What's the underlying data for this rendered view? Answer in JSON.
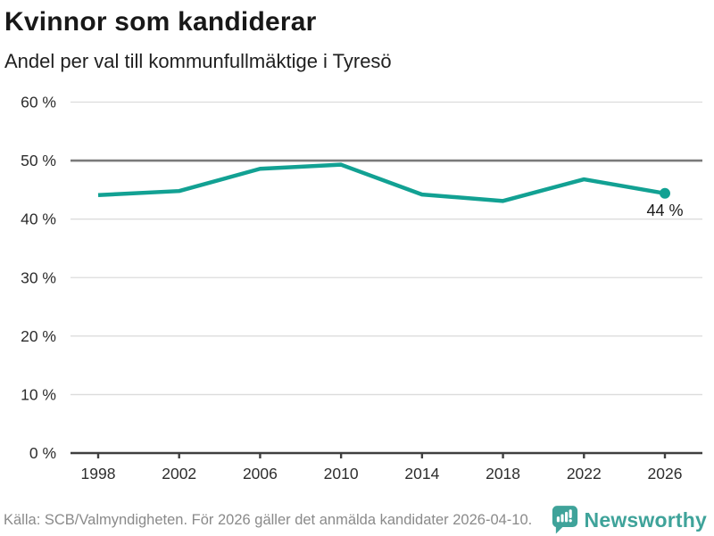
{
  "header": {
    "title": "Kvinnor som kandiderar",
    "subtitle": "Andel per val till kommunfullmäktige i Tyresö"
  },
  "chart_data": {
    "type": "line",
    "title": "Kvinnor som kandiderar",
    "subtitle": "Andel per val till kommunfullmäktige i Tyresö",
    "x": [
      1998,
      2002,
      2006,
      2010,
      2014,
      2018,
      2022,
      2026
    ],
    "xtick_labels": [
      "1998",
      "2002",
      "2006",
      "2010",
      "2014",
      "2018",
      "2022",
      "2026"
    ],
    "series": [
      {
        "values": [
          44.1,
          44.8,
          48.6,
          49.3,
          44.2,
          43.1,
          46.8,
          44.4
        ]
      }
    ],
    "ylim": [
      0,
      60
    ],
    "yticks": [
      0,
      10,
      20,
      30,
      40,
      50,
      60
    ],
    "ytick_labels": [
      "0 %",
      "10 %",
      "20 %",
      "30 %",
      "40 %",
      "50 %",
      "60 %"
    ],
    "grid": true,
    "reference_line": 50,
    "end_point_label": "44 %",
    "line_color": "#12a193",
    "legend_position": "none"
  },
  "footer": {
    "source": "Källa: SCB/Valmyndigheten. För 2026 gäller det anmälda kandidater 2026-04-10.",
    "brand": "Newsworthy",
    "brand_color": "#3fa39a"
  },
  "colors": {
    "accent_teal": "#12a193",
    "logo_teal": "#3fa39a",
    "grid_light": "#dcdcdc",
    "grid_emphasis": "#7a7a7a",
    "axis_dark": "#3f3f3f",
    "text_dark": "#181818",
    "text_muted": "#8a8a8a"
  }
}
